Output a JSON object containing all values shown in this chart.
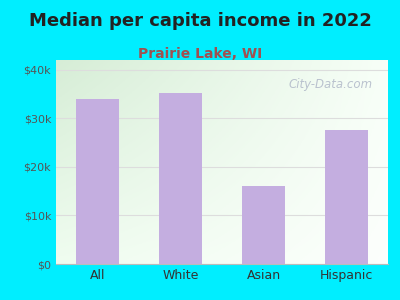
{
  "title": "Median per capita income in 2022",
  "subtitle": "Prairie Lake, WI",
  "categories": [
    "All",
    "White",
    "Asian",
    "Hispanic"
  ],
  "values": [
    34000,
    35200,
    16000,
    27500
  ],
  "bar_color": "#c4aee0",
  "title_fontsize": 13,
  "subtitle_fontsize": 10,
  "subtitle_color": "#a05050",
  "title_color": "#222222",
  "background_color": "#00eeff",
  "plot_bg_topleft": "#d8ecd8",
  "plot_bg_right": "#f8fff8",
  "plot_bg_bottom": "#f0faee",
  "ylim": [
    0,
    42000
  ],
  "yticks": [
    0,
    10000,
    20000,
    30000,
    40000
  ],
  "ytick_labels": [
    "$0",
    "$10k",
    "$20k",
    "$30k",
    "$40k"
  ],
  "watermark": "City-Data.com",
  "grid_color": "#dddddd"
}
